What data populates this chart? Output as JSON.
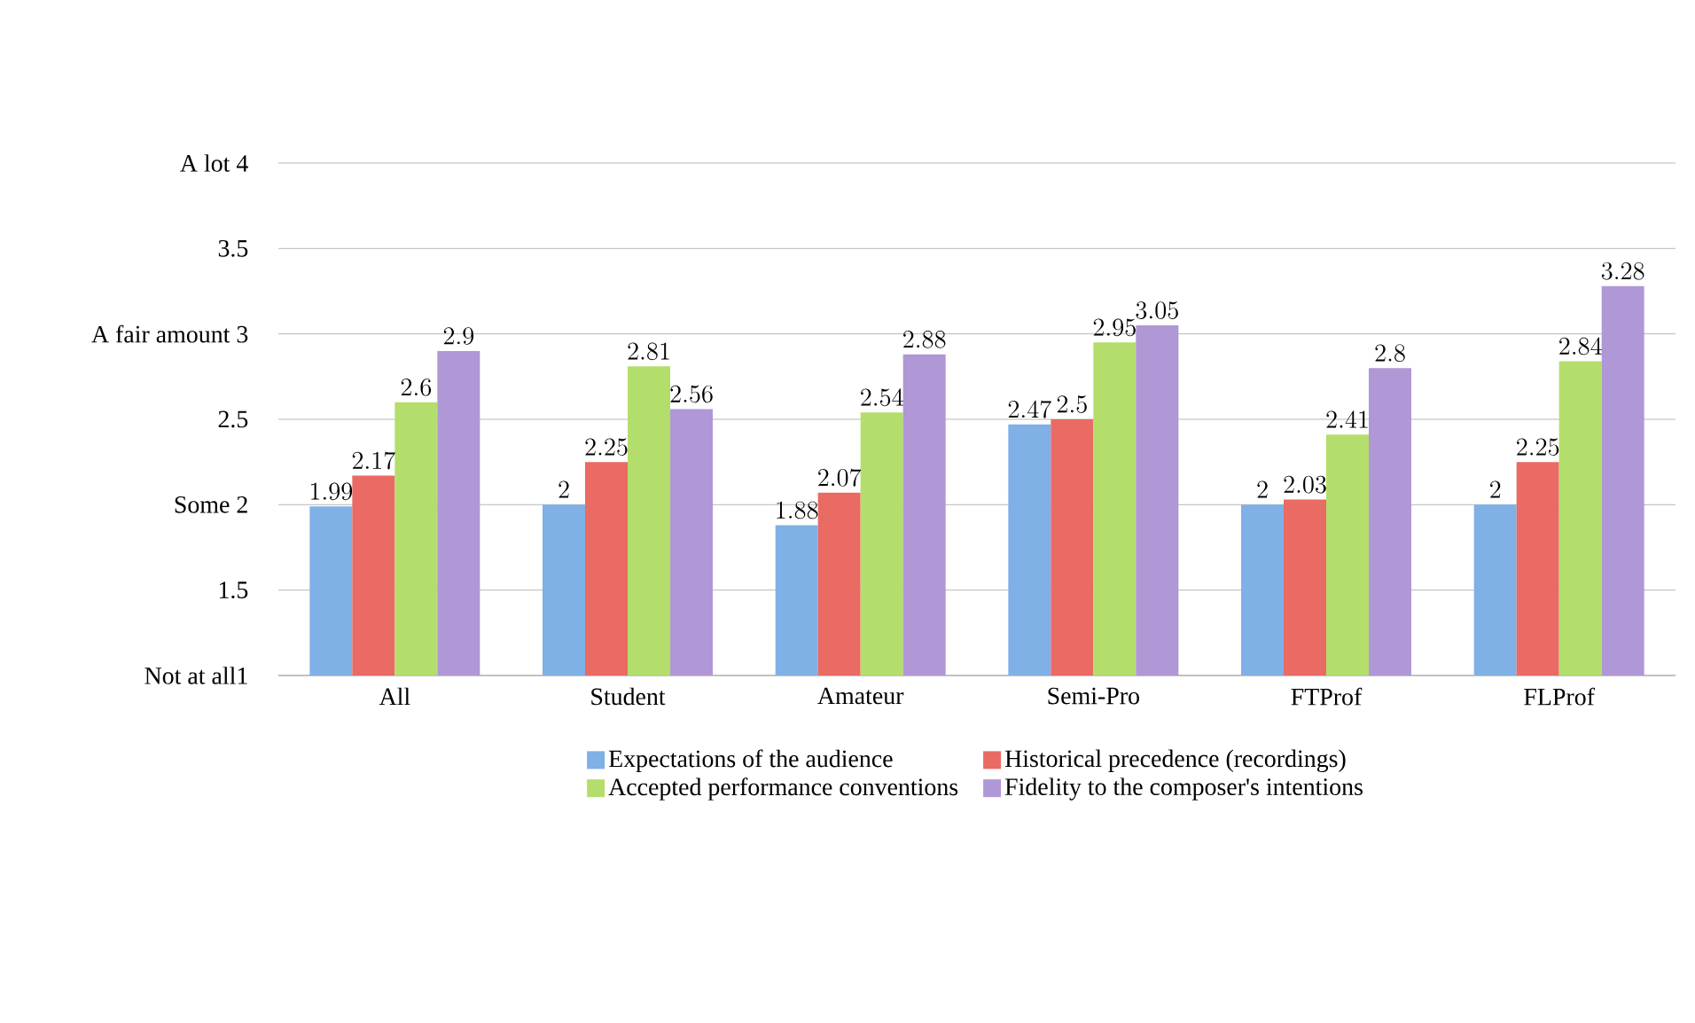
{
  "chart_data": {
    "type": "bar",
    "categories": [
      "All",
      "Student",
      "Amateur",
      "Semi-Pro",
      "FTProf",
      "FLProf"
    ],
    "series": [
      {
        "name": "Expectations of the audience",
        "color": "#7fb0e6",
        "values": [
          1.99,
          2,
          1.88,
          2.47,
          2,
          2
        ]
      },
      {
        "name": "Historical precedence (recordings)",
        "color": "#ea6a64",
        "values": [
          2.17,
          2.25,
          2.07,
          2.5,
          2.03,
          2.25
        ]
      },
      {
        "name": "Accepted performance conventions",
        "color": "#b3de6b",
        "values": [
          2.6,
          2.81,
          2.54,
          2.95,
          2.41,
          2.84
        ]
      },
      {
        "name": "Fidelity to the composer's intentions",
        "color": "#b097d6",
        "values": [
          2.9,
          2.56,
          2.88,
          3.05,
          2.8,
          3.28
        ]
      }
    ],
    "ylim": [
      1,
      4
    ],
    "yticks": [
      {
        "value": 1,
        "label": "Not at all1"
      },
      1.5,
      {
        "value": 2,
        "label": "Some 2"
      },
      2.5,
      {
        "value": 3,
        "label": "A fair amount 3"
      },
      3.5,
      {
        "value": 4,
        "label": "A lot 4"
      }
    ],
    "grid": "y",
    "legend": "bottom",
    "data_labels": true
  }
}
